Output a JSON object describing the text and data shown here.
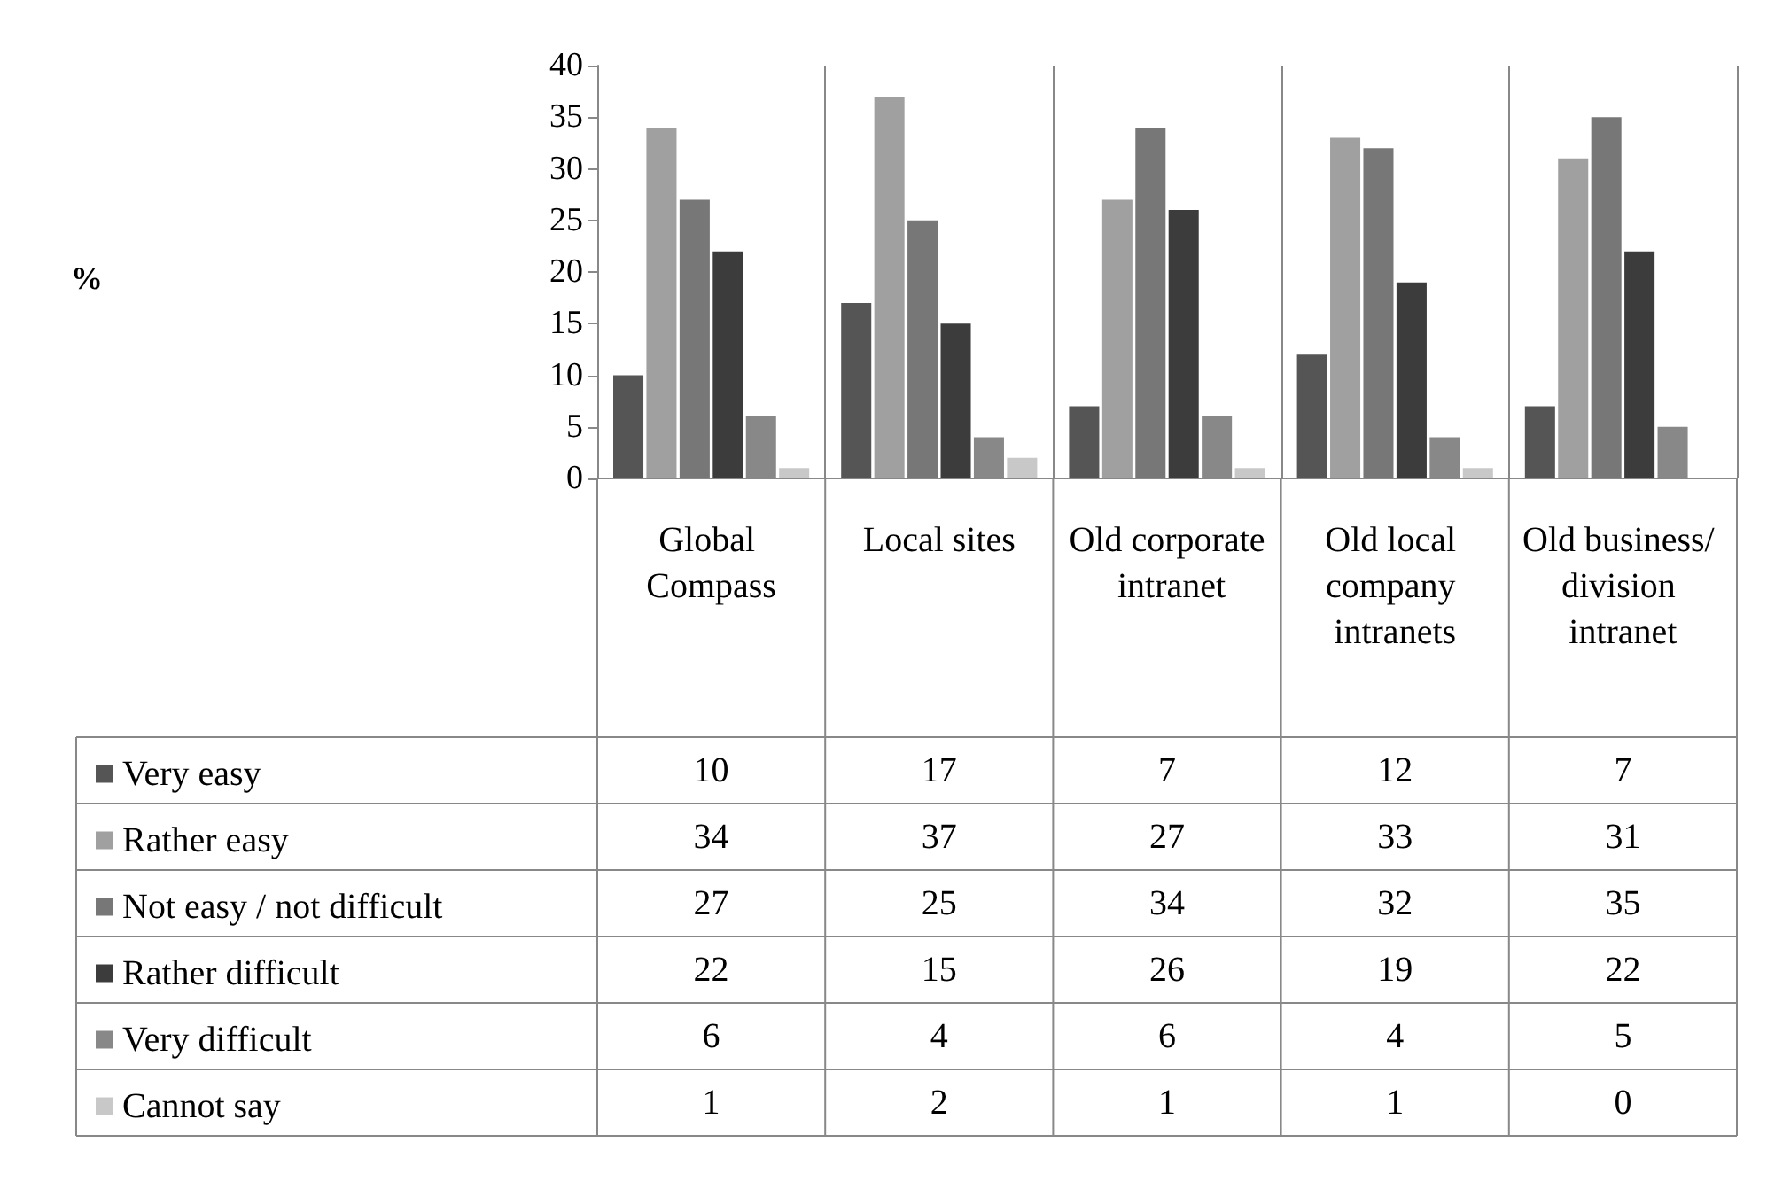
{
  "chart_data": {
    "type": "bar",
    "annotations": [
      "%"
    ],
    "categories": [
      "Global Compass",
      "Local sites",
      "Old corporate intranet",
      "Old local company intranets",
      "Old business/ division intranet"
    ],
    "series": [
      {
        "name": "Very easy",
        "color": "#555555",
        "values": [
          10,
          17,
          7,
          12,
          7
        ]
      },
      {
        "name": "Rather easy",
        "color": "#a0a0a0",
        "values": [
          34,
          37,
          27,
          33,
          31
        ]
      },
      {
        "name": "Not easy / not difficult",
        "color": "#777777",
        "values": [
          27,
          25,
          34,
          32,
          35
        ]
      },
      {
        "name": "Rather difficult",
        "color": "#3c3c3c",
        "values": [
          22,
          15,
          26,
          19,
          22
        ]
      },
      {
        "name": "Very difficult",
        "color": "#888888",
        "values": [
          6,
          4,
          6,
          4,
          5
        ]
      },
      {
        "name": "Cannot say",
        "color": "#c8c8c8",
        "values": [
          1,
          2,
          1,
          1,
          0
        ]
      }
    ],
    "ylim": [
      0,
      40
    ],
    "yticks": [
      0,
      5,
      10,
      15,
      20,
      25,
      30,
      35,
      40
    ],
    "grid": "x",
    "legend": "bottom left",
    "data_labels": true
  }
}
